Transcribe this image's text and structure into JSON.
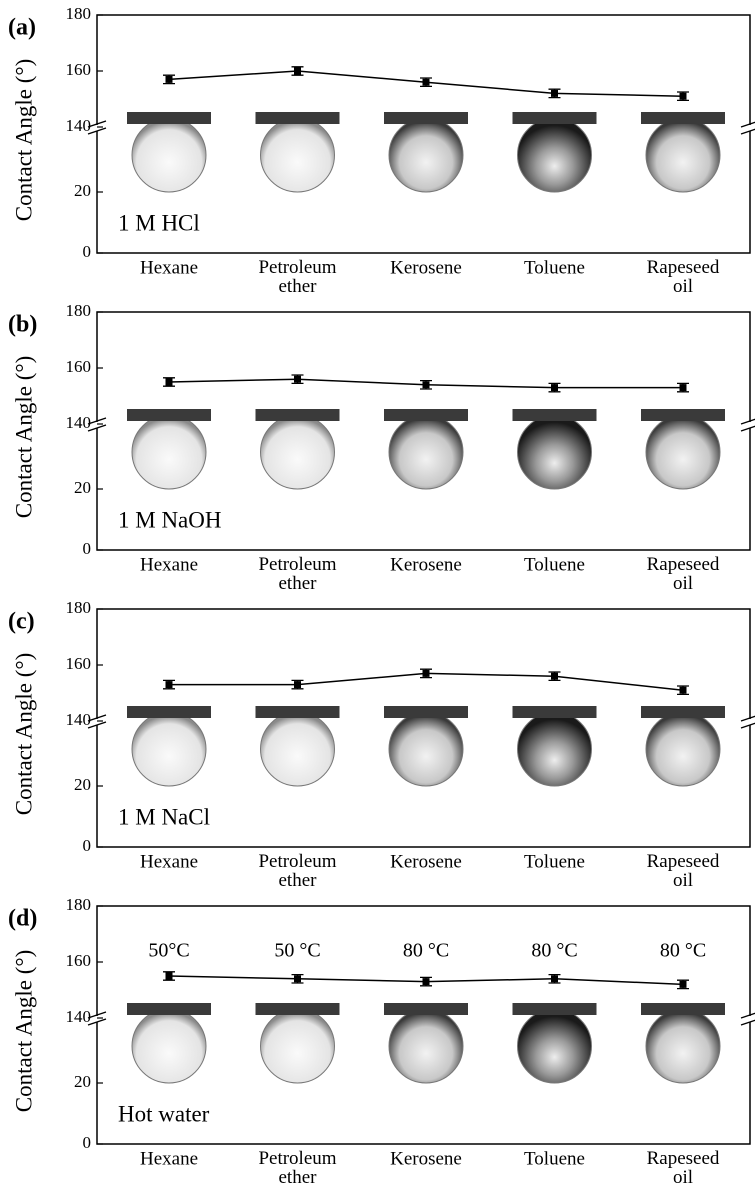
{
  "chart_data": [
    {
      "type": "line",
      "panel_label": "(a)",
      "condition": "1 M HCl",
      "y_label": "Contact Angle (°)",
      "categories": [
        "Hexane",
        "Petroleum ether",
        "Kerosene",
        "Toluene",
        "Rapeseed oil"
      ],
      "series": [
        {
          "color": "#000000",
          "values": [
            157,
            160,
            156,
            152,
            151
          ],
          "errors": [
            1.5,
            1.5,
            1.5,
            1.5,
            1.5
          ]
        }
      ],
      "ylim_lower": [
        0,
        40
      ],
      "ylim_upper": [
        140,
        180
      ],
      "yticks": [
        0,
        20,
        140,
        160,
        180
      ]
    },
    {
      "type": "line",
      "panel_label": "(b)",
      "condition": "1 M NaOH",
      "y_label": "Contact Angle (°)",
      "categories": [
        "Hexane",
        "Petroleum ether",
        "Kerosene",
        "Toluene",
        "Rapeseed oil"
      ],
      "series": [
        {
          "color": "#000000",
          "values": [
            155,
            156,
            154,
            153,
            153
          ],
          "errors": [
            1.5,
            1.5,
            1.5,
            1.5,
            1.5
          ]
        }
      ],
      "ylim_lower": [
        0,
        40
      ],
      "ylim_upper": [
        140,
        180
      ],
      "yticks": [
        0,
        20,
        140,
        160,
        180
      ]
    },
    {
      "type": "line",
      "panel_label": "(c)",
      "condition": "1 M NaCl",
      "y_label": "Contact Angle (°)",
      "categories": [
        "Hexane",
        "Petroleum ether",
        "Kerosene",
        "Toluene",
        "Rapeseed oil"
      ],
      "series": [
        {
          "color": "#000000",
          "values": [
            153,
            153,
            157,
            156,
            151
          ],
          "errors": [
            1.5,
            1.5,
            1.5,
            1.5,
            1.5
          ]
        }
      ],
      "ylim_lower": [
        0,
        40
      ],
      "ylim_upper": [
        140,
        180
      ],
      "yticks": [
        0,
        20,
        140,
        160,
        180
      ]
    },
    {
      "type": "line",
      "panel_label": "(d)",
      "condition": "Hot water",
      "y_label": "Contact Angle (°)",
      "categories": [
        "Hexane",
        "Petroleum ether",
        "Kerosene",
        "Toluene",
        "Rapeseed oil"
      ],
      "annotations": [
        "50°C",
        "50 °C",
        "80 °C",
        "80 °C",
        "80 °C"
      ],
      "series": [
        {
          "color": "#000000",
          "values": [
            155,
            154,
            153,
            154,
            152
          ],
          "errors": [
            1.5,
            1.5,
            1.5,
            1.5,
            1.5
          ]
        }
      ],
      "ylim_lower": [
        0,
        40
      ],
      "ylim_upper": [
        140,
        180
      ],
      "yticks": [
        0,
        20,
        140,
        160,
        180
      ]
    }
  ]
}
